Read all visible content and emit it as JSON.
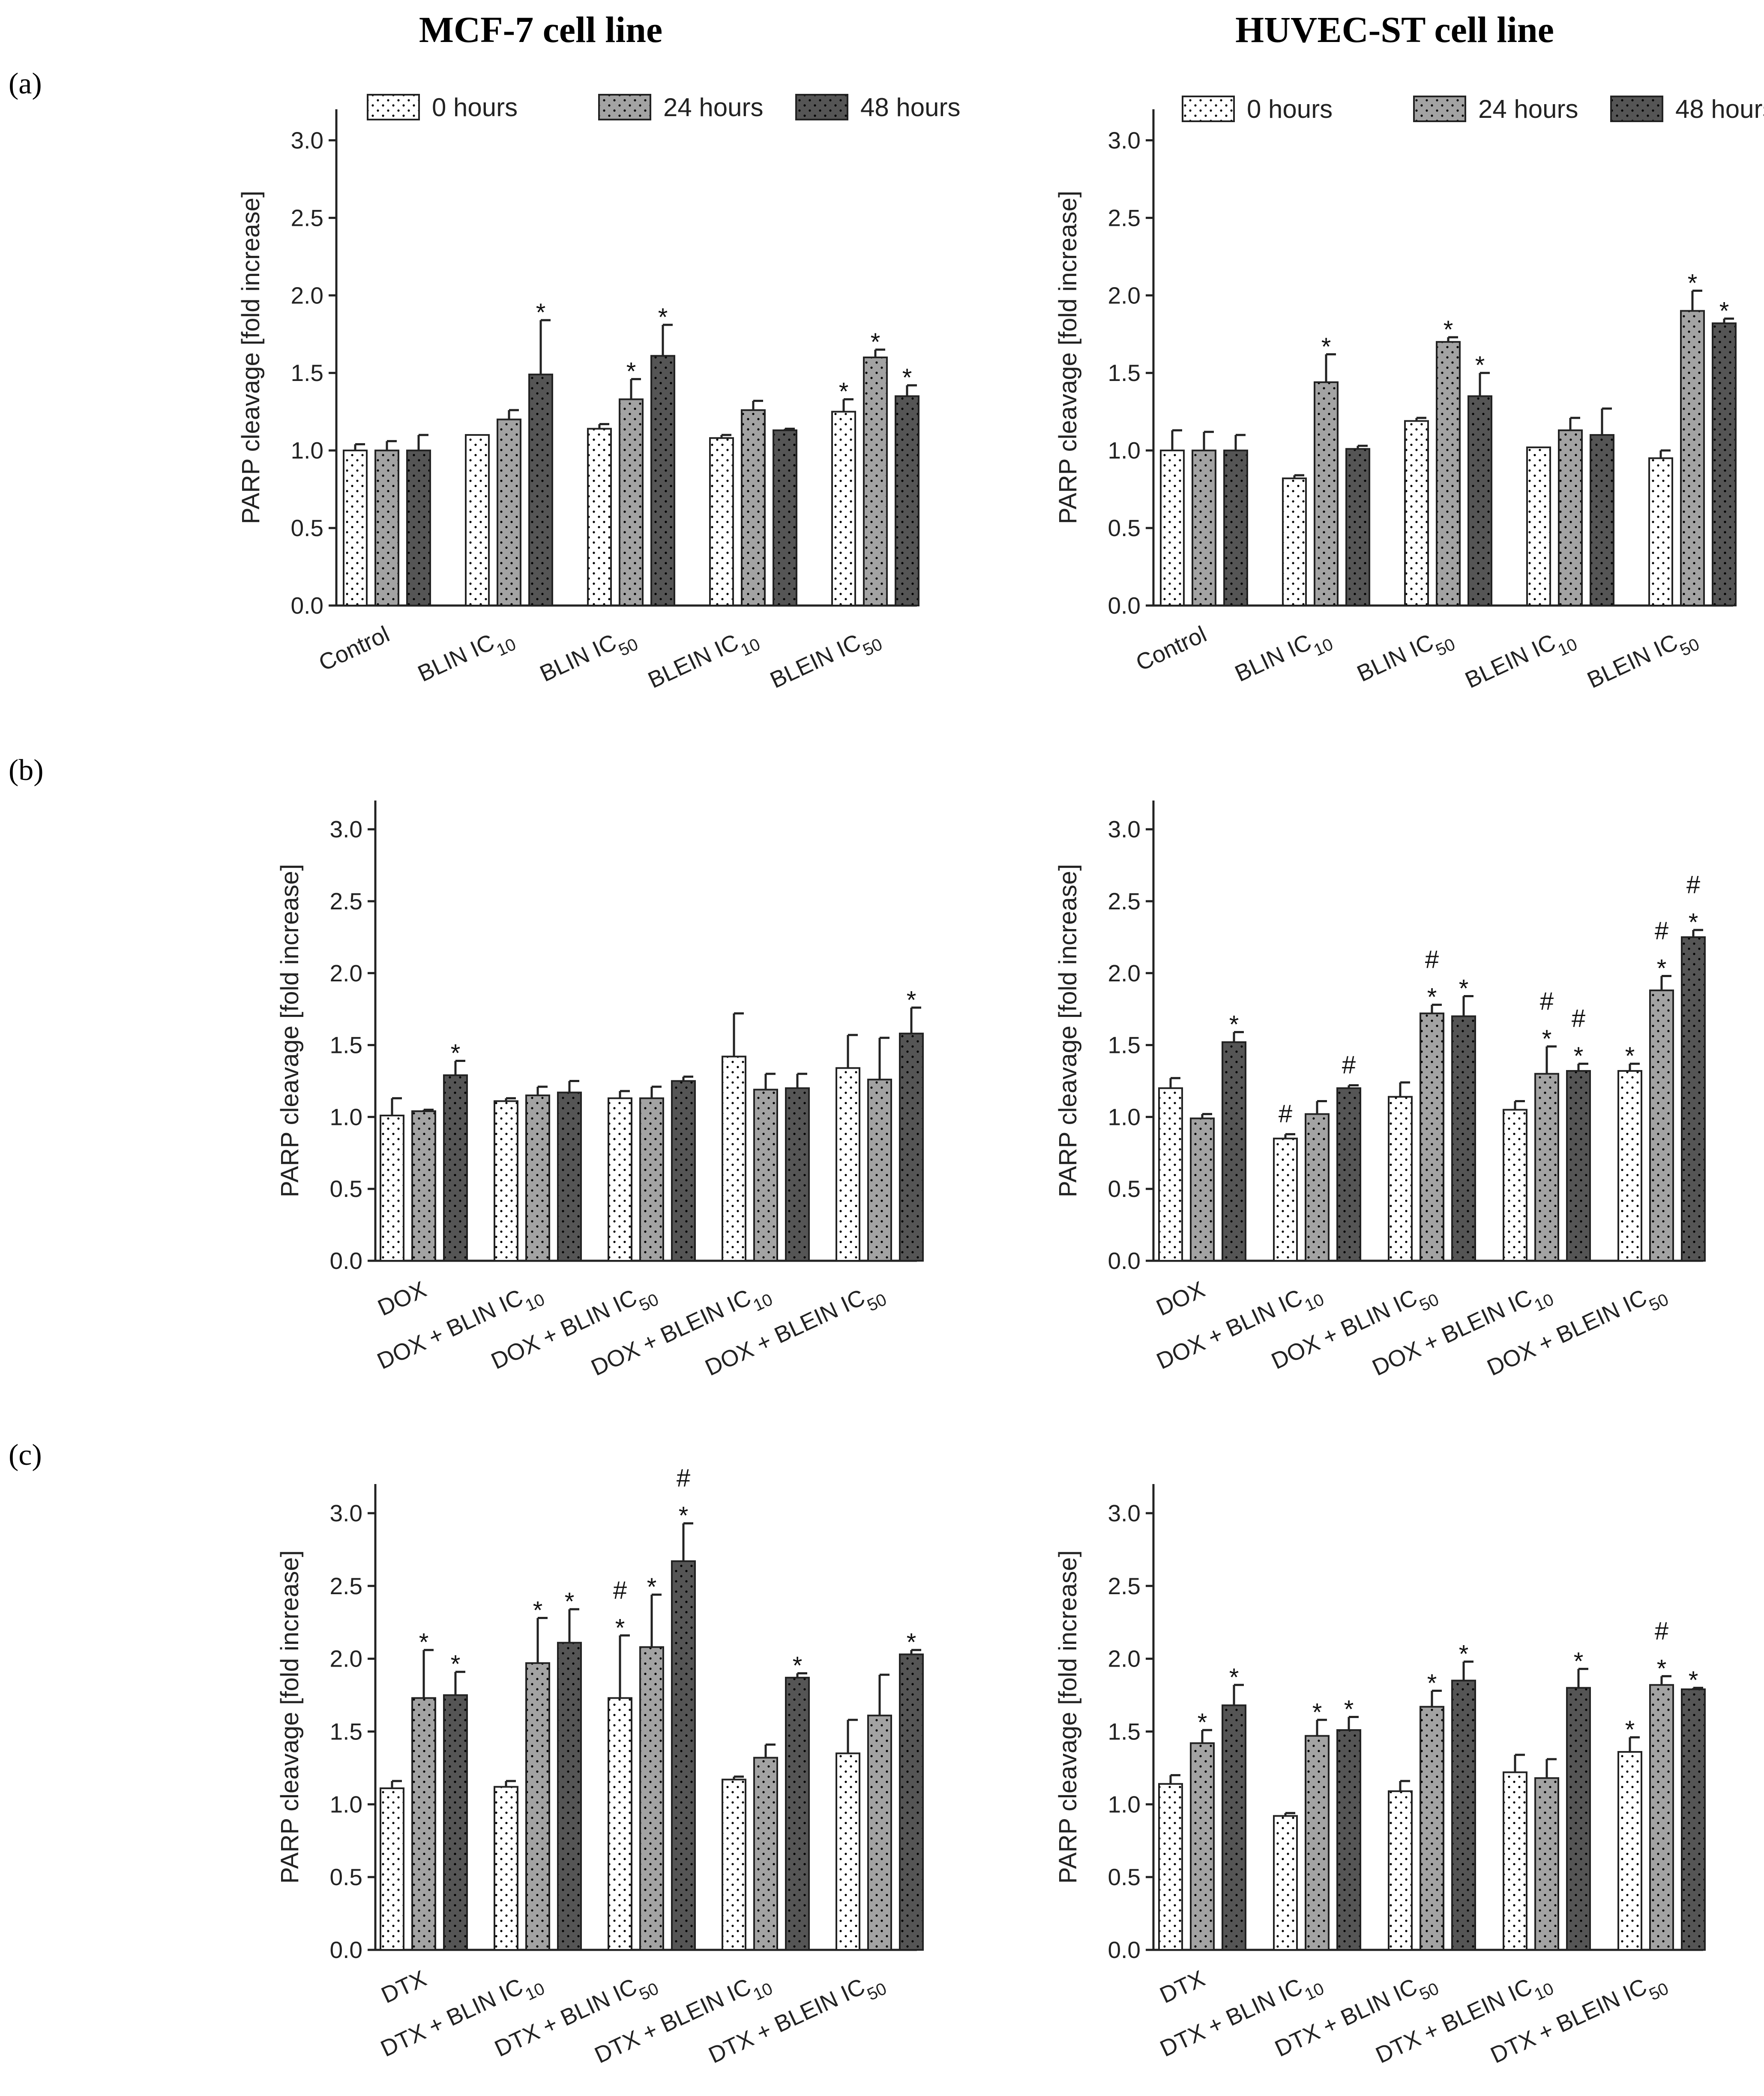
{
  "figure": {
    "column_titles": [
      "MCF-7 cell line",
      "HUVEC-ST cell line"
    ],
    "row_labels": [
      "(a)",
      "(b)",
      "(c)"
    ],
    "legend": [
      "0 hours",
      "24 hours",
      "48 hours"
    ],
    "colors": {
      "h0": "#ffffff",
      "h24": "#a3a3a3",
      "h48": "#555555",
      "dots": "#000000",
      "axis": "#222222"
    }
  },
  "chart_data": [
    {
      "type": "bar",
      "panel": "(a)",
      "cell_line": "MCF-7 cell line",
      "ylabel": "PARP cleavage [fold increase]",
      "ylim": [
        0,
        3.2
      ],
      "yticks": [
        "0.0",
        "0.5",
        "1.0",
        "1.5",
        "2.0",
        "2.5",
        "3.0"
      ],
      "legend": [
        "0 hours",
        "24 hours",
        "48 hours"
      ],
      "categories": [
        {
          "main": "Control",
          "sub": ""
        },
        {
          "main": "BLIN IC",
          "sub": "10"
        },
        {
          "main": "BLIN IC",
          "sub": "50"
        },
        {
          "main": "BLEIN IC",
          "sub": "10"
        },
        {
          "main": "BLEIN IC",
          "sub": "50"
        }
      ],
      "series": [
        {
          "name": "0 hours",
          "values": [
            1.0,
            1.1,
            1.14,
            1.08,
            1.25
          ],
          "errors": [
            0.04,
            0.0,
            0.03,
            0.02,
            0.08
          ],
          "annotations": [
            "",
            "",
            "",
            "",
            "*"
          ]
        },
        {
          "name": "24 hours",
          "values": [
            1.0,
            1.2,
            1.33,
            1.26,
            1.6
          ],
          "errors": [
            0.06,
            0.06,
            0.13,
            0.06,
            0.05
          ],
          "annotations": [
            "",
            "",
            "*",
            "",
            "*"
          ]
        },
        {
          "name": "48 hours",
          "values": [
            1.0,
            1.49,
            1.61,
            1.13,
            1.35
          ],
          "errors": [
            0.1,
            0.35,
            0.2,
            0.01,
            0.07
          ],
          "annotations": [
            "",
            "*",
            "*",
            "",
            "*"
          ]
        }
      ]
    },
    {
      "type": "bar",
      "panel": "(a)",
      "cell_line": "HUVEC-ST cell line",
      "ylabel": "PARP cleavage [fold increase]",
      "ylim": [
        0,
        3.2
      ],
      "yticks": [
        "0.0",
        "0.5",
        "1.0",
        "1.5",
        "2.0",
        "2.5",
        "3.0"
      ],
      "legend": [
        "0 hours",
        "24 hours",
        "48 hours"
      ],
      "categories": [
        {
          "main": "Control",
          "sub": ""
        },
        {
          "main": "BLIN IC",
          "sub": "10"
        },
        {
          "main": "BLIN IC",
          "sub": "50"
        },
        {
          "main": "BLEIN IC",
          "sub": "10"
        },
        {
          "main": "BLEIN IC",
          "sub": "50"
        }
      ],
      "series": [
        {
          "name": "0 hours",
          "values": [
            1.0,
            0.82,
            1.19,
            1.02,
            0.95
          ],
          "errors": [
            0.13,
            0.02,
            0.02,
            0.0,
            0.05
          ],
          "annotations": [
            "",
            "",
            "",
            "",
            ""
          ]
        },
        {
          "name": "24 hours",
          "values": [
            1.0,
            1.44,
            1.7,
            1.13,
            1.9
          ],
          "errors": [
            0.12,
            0.18,
            0.03,
            0.08,
            0.13
          ],
          "annotations": [
            "",
            "*",
            "*",
            "",
            "*"
          ]
        },
        {
          "name": "48 hours",
          "values": [
            1.0,
            1.01,
            1.35,
            1.1,
            1.82
          ],
          "errors": [
            0.1,
            0.02,
            0.15,
            0.17,
            0.03
          ],
          "annotations": [
            "",
            "",
            "*",
            "",
            "*"
          ]
        }
      ]
    },
    {
      "type": "bar",
      "panel": "(b)",
      "cell_line": "MCF-7 cell line",
      "ylabel": "PARP cleavage [fold increase]",
      "ylim": [
        0,
        3.2
      ],
      "yticks": [
        "0.0",
        "0.5",
        "1.0",
        "1.5",
        "2.0",
        "2.5",
        "3.0"
      ],
      "legend": [
        "0 hours",
        "24 hours",
        "48 hours"
      ],
      "categories": [
        {
          "main": "DOX",
          "sub": ""
        },
        {
          "main": "DOX + BLIN IC",
          "sub": "10"
        },
        {
          "main": "DOX + BLIN IC",
          "sub": "50"
        },
        {
          "main": "DOX + BLEIN IC",
          "sub": "10"
        },
        {
          "main": "DOX + BLEIN IC",
          "sub": "50"
        }
      ],
      "series": [
        {
          "name": "0 hours",
          "values": [
            1.01,
            1.11,
            1.13,
            1.42,
            1.34
          ],
          "errors": [
            0.12,
            0.02,
            0.05,
            0.3,
            0.23
          ],
          "annotations": [
            "",
            "",
            "",
            "",
            ""
          ]
        },
        {
          "name": "24 hours",
          "values": [
            1.04,
            1.15,
            1.13,
            1.19,
            1.26
          ],
          "errors": [
            0.01,
            0.06,
            0.08,
            0.11,
            0.29
          ],
          "annotations": [
            "",
            "",
            "",
            "",
            ""
          ]
        },
        {
          "name": "48 hours",
          "values": [
            1.29,
            1.17,
            1.25,
            1.2,
            1.58
          ],
          "errors": [
            0.1,
            0.08,
            0.03,
            0.1,
            0.18
          ],
          "annotations": [
            "*",
            "",
            "",
            "",
            "*"
          ]
        }
      ]
    },
    {
      "type": "bar",
      "panel": "(b)",
      "cell_line": "HUVEC-ST cell line",
      "ylabel": "PARP cleavage [fold increase]",
      "ylim": [
        0,
        3.2
      ],
      "yticks": [
        "0.0",
        "0.5",
        "1.0",
        "1.5",
        "2.0",
        "2.5",
        "3.0"
      ],
      "legend": [
        "0 hours",
        "24 hours",
        "48 hours"
      ],
      "categories": [
        {
          "main": "DOX",
          "sub": ""
        },
        {
          "main": "DOX + BLIN IC",
          "sub": "10"
        },
        {
          "main": "DOX + BLIN IC",
          "sub": "50"
        },
        {
          "main": "DOX + BLEIN IC",
          "sub": "10"
        },
        {
          "main": "DOX + BLEIN IC",
          "sub": "50"
        }
      ],
      "series": [
        {
          "name": "0 hours",
          "values": [
            1.2,
            0.85,
            1.14,
            1.05,
            1.32
          ],
          "errors": [
            0.07,
            0.03,
            0.1,
            0.06,
            0.05
          ],
          "annotations": [
            "",
            "#",
            "",
            "",
            "*"
          ]
        },
        {
          "name": "24 hours",
          "values": [
            0.99,
            1.02,
            1.72,
            1.3,
            1.88
          ],
          "errors": [
            0.03,
            0.09,
            0.06,
            0.19,
            0.1
          ],
          "annotations": [
            "",
            "",
            "#*",
            "#*",
            "#*"
          ]
        },
        {
          "name": "48 hours",
          "values": [
            1.52,
            1.2,
            1.7,
            1.32,
            2.25
          ],
          "errors": [
            0.07,
            0.02,
            0.14,
            0.05,
            0.05
          ],
          "annotations": [
            "*",
            "#",
            "*",
            "#*",
            "#*"
          ]
        }
      ]
    },
    {
      "type": "bar",
      "panel": "(c)",
      "cell_line": "MCF-7 cell line",
      "ylabel": "PARP cleavage [fold increase]",
      "ylim": [
        0,
        3.2
      ],
      "yticks": [
        "0.0",
        "0.5",
        "1.0",
        "1.5",
        "2.0",
        "2.5",
        "3.0"
      ],
      "legend": [
        "0 hours",
        "24 hours",
        "48 hours"
      ],
      "categories": [
        {
          "main": "DTX",
          "sub": ""
        },
        {
          "main": "DTX + BLIN IC",
          "sub": "10"
        },
        {
          "main": "DTX + BLIN IC",
          "sub": "50"
        },
        {
          "main": "DTX + BLEIN IC",
          "sub": "10"
        },
        {
          "main": "DTX + BLEIN IC",
          "sub": "50"
        }
      ],
      "series": [
        {
          "name": "0 hours",
          "values": [
            1.11,
            1.12,
            1.73,
            1.17,
            1.35
          ],
          "errors": [
            0.05,
            0.04,
            0.43,
            0.02,
            0.23
          ],
          "annotations": [
            "",
            "",
            "#*",
            "",
            ""
          ]
        },
        {
          "name": "24 hours",
          "values": [
            1.73,
            1.97,
            2.08,
            1.32,
            1.61
          ],
          "errors": [
            0.33,
            0.31,
            0.36,
            0.09,
            0.28
          ],
          "annotations": [
            "*",
            "*",
            "*",
            "",
            ""
          ]
        },
        {
          "name": "48 hours",
          "values": [
            1.75,
            2.11,
            2.67,
            1.87,
            2.03
          ],
          "errors": [
            0.16,
            0.23,
            0.26,
            0.03,
            0.03
          ],
          "annotations": [
            "*",
            "*",
            "#*",
            "*",
            "*"
          ]
        }
      ]
    },
    {
      "type": "bar",
      "panel": "(c)",
      "cell_line": "HUVEC-ST cell line",
      "ylabel": "PARP cleavage [fold increase]",
      "ylim": [
        0,
        3.2
      ],
      "yticks": [
        "0.0",
        "0.5",
        "1.0",
        "1.5",
        "2.0",
        "2.5",
        "3.0"
      ],
      "legend": [
        "0 hours",
        "24 hours",
        "48 hours"
      ],
      "categories": [
        {
          "main": "DTX",
          "sub": ""
        },
        {
          "main": "DTX + BLIN IC",
          "sub": "10"
        },
        {
          "main": "DTX + BLIN IC",
          "sub": "50"
        },
        {
          "main": "DTX + BLEIN IC",
          "sub": "10"
        },
        {
          "main": "DTX + BLEIN IC",
          "sub": "50"
        }
      ],
      "series": [
        {
          "name": "0 hours",
          "values": [
            1.14,
            0.92,
            1.09,
            1.22,
            1.36
          ],
          "errors": [
            0.06,
            0.02,
            0.07,
            0.12,
            0.1
          ],
          "annotations": [
            "",
            "",
            "",
            "",
            "*"
          ]
        },
        {
          "name": "24 hours",
          "values": [
            1.42,
            1.47,
            1.67,
            1.18,
            1.82
          ],
          "errors": [
            0.09,
            0.11,
            0.11,
            0.13,
            0.06
          ],
          "annotations": [
            "*",
            "*",
            "*",
            "",
            "#*"
          ]
        },
        {
          "name": "48 hours",
          "values": [
            1.68,
            1.51,
            1.85,
            1.8,
            1.79
          ],
          "errors": [
            0.14,
            0.09,
            0.13,
            0.13,
            0.01
          ],
          "annotations": [
            "*",
            "*",
            "*",
            "*",
            "*"
          ]
        }
      ]
    }
  ]
}
